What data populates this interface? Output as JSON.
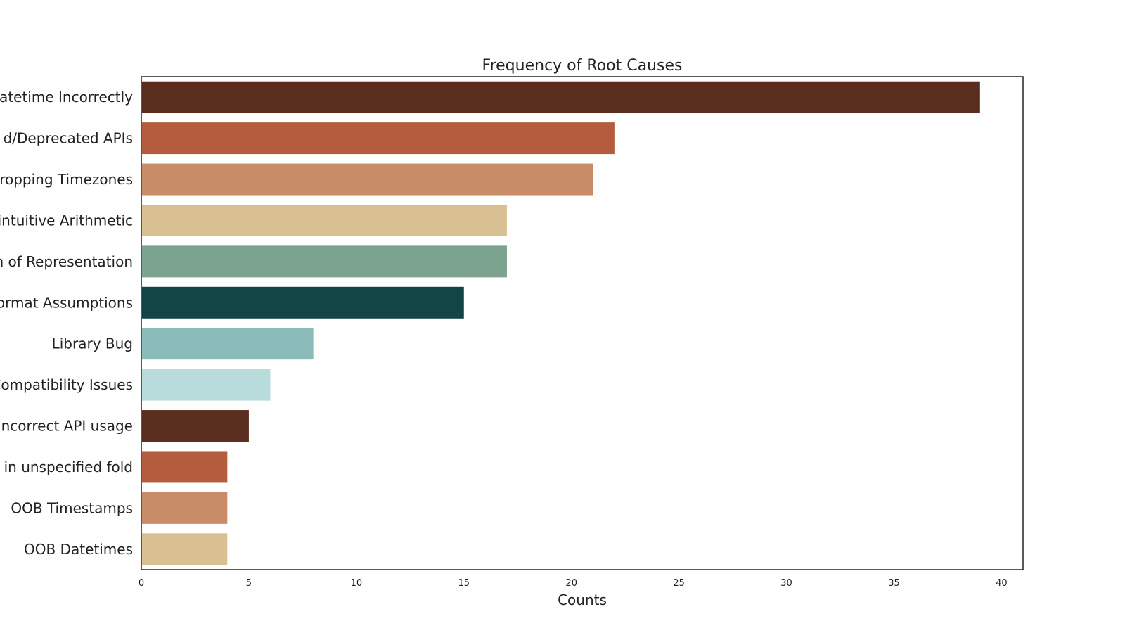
{
  "chart_data": {
    "type": "bar",
    "orientation": "horizontal",
    "title": "Frequency of Root Causes",
    "xlabel": "Counts",
    "ylabel": "",
    "xlim": [
      0,
      41
    ],
    "xticks": [
      0,
      5,
      10,
      15,
      20,
      25,
      30,
      35,
      40
    ],
    "grid": false,
    "categories": [
      "Datetime Incorrectly",
      "d/Deprecated APIs",
      "ropping Timezones",
      "nintuitive Arithmetic",
      "n of Representation",
      "ormat Assumptions",
      "Library Bug",
      "Compatibility Issues",
      "ncorrect API usage",
      "e in unspecified fold",
      "OOB Timestamps",
      "OOB Datetimes"
    ],
    "values": [
      39,
      22,
      21,
      17,
      17,
      15,
      8,
      6,
      5,
      4,
      4,
      4
    ],
    "colors": [
      "#5a2e1f",
      "#b35c3e",
      "#c98c68",
      "#d9c092",
      "#7ba38f",
      "#134446",
      "#8bbcb9",
      "#b8dcdc",
      "#5a2e1f",
      "#b35c3e",
      "#c98c68",
      "#d9c092"
    ]
  }
}
